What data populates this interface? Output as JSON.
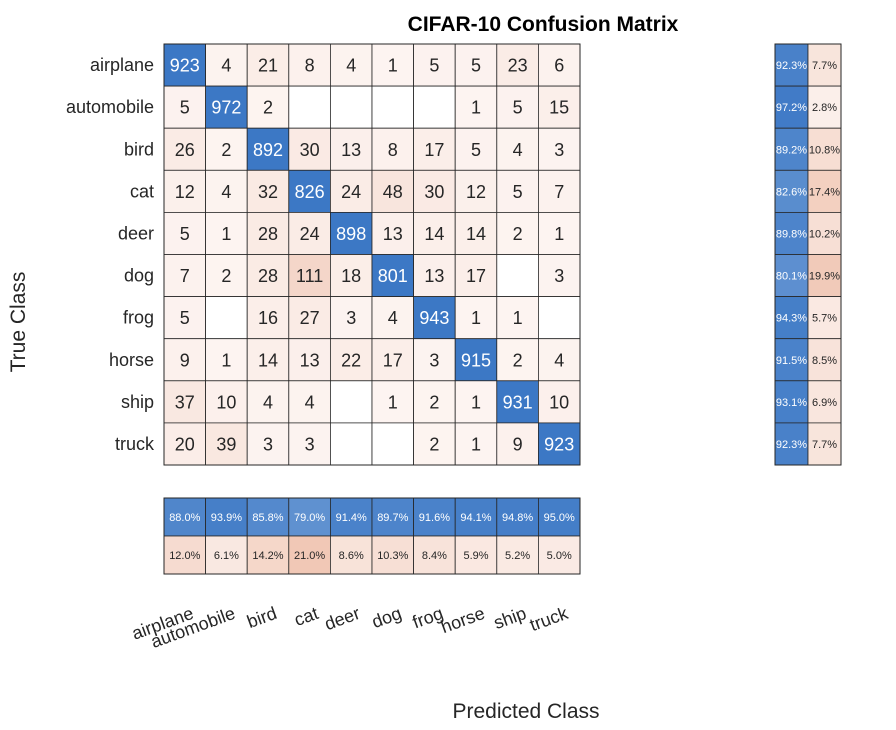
{
  "chart_data": {
    "type": "heatmap",
    "title": "CIFAR-10 Confusion Matrix",
    "xlabel": "Predicted Class",
    "ylabel": "True Class",
    "classes": [
      "airplane",
      "automobile",
      "bird",
      "cat",
      "deer",
      "dog",
      "frog",
      "horse",
      "ship",
      "truck"
    ],
    "matrix": [
      [
        923,
        4,
        21,
        8,
        4,
        1,
        5,
        5,
        23,
        6
      ],
      [
        5,
        972,
        2,
        0,
        0,
        0,
        0,
        1,
        5,
        15
      ],
      [
        26,
        2,
        892,
        30,
        13,
        8,
        17,
        5,
        4,
        3
      ],
      [
        12,
        4,
        32,
        826,
        24,
        48,
        30,
        12,
        5,
        7
      ],
      [
        5,
        1,
        28,
        24,
        898,
        13,
        14,
        14,
        2,
        1
      ],
      [
        7,
        2,
        28,
        111,
        18,
        801,
        13,
        17,
        0,
        3
      ],
      [
        5,
        0,
        16,
        27,
        3,
        4,
        943,
        1,
        1,
        0
      ],
      [
        9,
        1,
        14,
        13,
        22,
        17,
        3,
        915,
        2,
        4
      ],
      [
        37,
        10,
        4,
        4,
        0,
        1,
        2,
        1,
        931,
        10
      ],
      [
        20,
        39,
        3,
        3,
        0,
        0,
        2,
        1,
        9,
        923
      ]
    ],
    "row_summary": {
      "correct": [
        "92.3%",
        "97.2%",
        "89.2%",
        "82.6%",
        "89.8%",
        "80.1%",
        "94.3%",
        "91.5%",
        "93.1%",
        "92.3%"
      ],
      "incorrect": [
        "7.7%",
        "2.8%",
        "10.8%",
        "17.4%",
        "10.2%",
        "19.9%",
        "5.7%",
        "8.5%",
        "6.9%",
        "7.7%"
      ]
    },
    "column_summary": {
      "correct": [
        "88.0%",
        "93.9%",
        "85.8%",
        "79.0%",
        "91.4%",
        "89.7%",
        "91.6%",
        "94.1%",
        "94.8%",
        "95.0%"
      ],
      "incorrect": [
        "12.0%",
        "6.1%",
        "14.2%",
        "21.0%",
        "8.6%",
        "10.3%",
        "8.4%",
        "5.9%",
        "5.2%",
        "5.0%"
      ]
    },
    "colors": {
      "diagonal": "#3c78c5",
      "off_diagonal_max": "#f4d6c9",
      "empty": "#ffffff",
      "grid": "#262626",
      "diag_text": "#ffffff",
      "text": "#262626"
    }
  }
}
